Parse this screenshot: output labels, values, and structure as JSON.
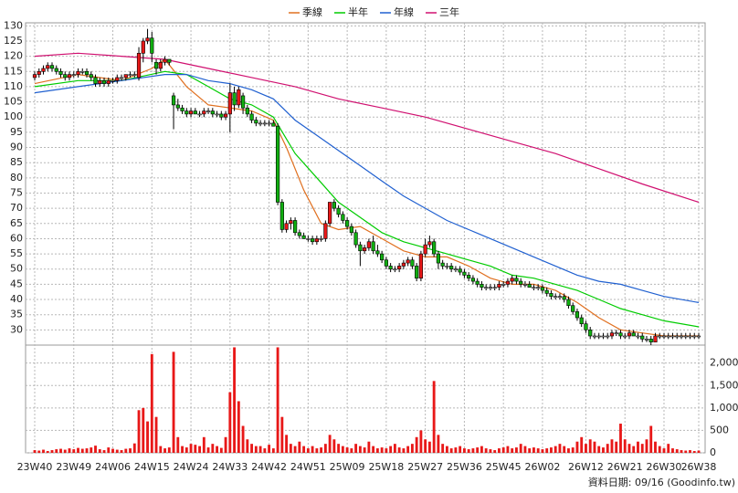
{
  "chart_data": {
    "type": "candlestick",
    "legend_position": "top",
    "categories": [
      "23W40",
      null,
      null,
      null,
      null,
      null,
      null,
      null,
      null,
      "23W49",
      null,
      null,
      null,
      null,
      null,
      null,
      null,
      null,
      "24W06",
      null,
      null,
      null,
      null,
      null,
      null,
      null,
      null,
      "24W15",
      null,
      null,
      null,
      null,
      null,
      null,
      null,
      null,
      "24W24",
      null,
      null,
      null,
      null,
      null,
      null,
      null,
      null,
      "24W33",
      null,
      null,
      null,
      null,
      null,
      null,
      null,
      null,
      "24W42",
      null,
      null,
      null,
      null,
      null,
      null,
      null,
      null,
      "24W51",
      null,
      null,
      null,
      null,
      null,
      null,
      null,
      null,
      "25W09",
      null,
      null,
      null,
      null,
      null,
      null,
      null,
      null,
      "25W18",
      null,
      null,
      null,
      null,
      null,
      null,
      null,
      null,
      "25W27",
      null,
      null,
      null,
      null,
      null,
      null,
      null,
      null,
      "25W36",
      null,
      null,
      null,
      null,
      null,
      null,
      null,
      null,
      "25W45",
      null,
      null,
      null,
      null,
      null,
      null,
      null,
      null,
      "26W02",
      null,
      null,
      null,
      null,
      null,
      null,
      null,
      null,
      null,
      "26W12",
      null,
      null,
      null,
      null,
      null,
      null,
      null,
      null,
      "26W21",
      null,
      null,
      null,
      null,
      null,
      null,
      null,
      null,
      "26W30",
      null,
      null,
      null,
      null,
      null,
      null,
      null,
      "26W38"
    ],
    "up_color": "#e81818",
    "down_color": "#10b010",
    "candles": [
      [
        113,
        115,
        112,
        114
      ],
      [
        114,
        116,
        113,
        115
      ],
      [
        115,
        117,
        114,
        116
      ],
      [
        116,
        118,
        115,
        117
      ],
      [
        117,
        118,
        115,
        116
      ],
      [
        116,
        117,
        114,
        115
      ],
      [
        115,
        116,
        113,
        114
      ],
      [
        114,
        115,
        112,
        113
      ],
      [
        113,
        115,
        112,
        114
      ],
      [
        114,
        115,
        113,
        114
      ],
      [
        114,
        116,
        113,
        115
      ],
      [
        115,
        116,
        114,
        115
      ],
      [
        115,
        116,
        113,
        114
      ],
      [
        114,
        115,
        112,
        113
      ],
      [
        113,
        114,
        110,
        111
      ],
      [
        111,
        113,
        110,
        112
      ],
      [
        112,
        113,
        110,
        111
      ],
      [
        111,
        113,
        110,
        112
      ],
      [
        112,
        113,
        111,
        112
      ],
      [
        112,
        114,
        111,
        113
      ],
      [
        113,
        114,
        112,
        113
      ],
      [
        113,
        114,
        112,
        114
      ],
      [
        114,
        115,
        113,
        114
      ],
      [
        114,
        115,
        113,
        114
      ],
      [
        113,
        123,
        112,
        121
      ],
      [
        121,
        126,
        118,
        125
      ],
      [
        125,
        129,
        124,
        126
      ],
      [
        126,
        128,
        118,
        121
      ],
      [
        118,
        119,
        114,
        116
      ],
      [
        116,
        119,
        115,
        118
      ],
      [
        118,
        120,
        117,
        119
      ],
      [
        119,
        119,
        117,
        118
      ],
      [
        107,
        108,
        96,
        104
      ],
      [
        104,
        106,
        102,
        103
      ],
      [
        103,
        104,
        101,
        102
      ],
      [
        102,
        103,
        100,
        101
      ],
      [
        101,
        103,
        100,
        102
      ],
      [
        102,
        103,
        101,
        101
      ],
      [
        101,
        102,
        100,
        101
      ],
      [
        101,
        103,
        100,
        102
      ],
      [
        102,
        103,
        101,
        102
      ],
      [
        102,
        103,
        100,
        101
      ],
      [
        101,
        102,
        100,
        101
      ],
      [
        101,
        102,
        99,
        100
      ],
      [
        100,
        102,
        99,
        101
      ],
      [
        101,
        111,
        95,
        108
      ],
      [
        108,
        110,
        102,
        104
      ],
      [
        104,
        110,
        103,
        109
      ],
      [
        107,
        108,
        101,
        103
      ],
      [
        103,
        104,
        100,
        101
      ],
      [
        101,
        102,
        98,
        99
      ],
      [
        99,
        100,
        97,
        98
      ],
      [
        98,
        99,
        97,
        98
      ],
      [
        98,
        99,
        97,
        98
      ],
      [
        98,
        99,
        97,
        98
      ],
      [
        98,
        99,
        97,
        97
      ],
      [
        97,
        98,
        71,
        72
      ],
      [
        72,
        73,
        62,
        63
      ],
      [
        63,
        66,
        62,
        65
      ],
      [
        65,
        67,
        63,
        66
      ],
      [
        66,
        67,
        61,
        62
      ],
      [
        62,
        63,
        60,
        61
      ],
      [
        61,
        62,
        60,
        60
      ],
      [
        60,
        61,
        59,
        60
      ],
      [
        60,
        61,
        58,
        59
      ],
      [
        59,
        61,
        58,
        60
      ],
      [
        60,
        61,
        59,
        60
      ],
      [
        60,
        66,
        59,
        65
      ],
      [
        65,
        72,
        64,
        72
      ],
      [
        72,
        73,
        69,
        70
      ],
      [
        70,
        71,
        67,
        68
      ],
      [
        68,
        69,
        65,
        66
      ],
      [
        66,
        67,
        63,
        64
      ],
      [
        64,
        65,
        61,
        62
      ],
      [
        62,
        63,
        57,
        58
      ],
      [
        58,
        59,
        51,
        56
      ],
      [
        56,
        58,
        55,
        57
      ],
      [
        57,
        60,
        56,
        59
      ],
      [
        59,
        61,
        55,
        56
      ],
      [
        56,
        58,
        54,
        55
      ],
      [
        55,
        56,
        52,
        53
      ],
      [
        53,
        54,
        50,
        51
      ],
      [
        51,
        52,
        49,
        50
      ],
      [
        50,
        51,
        49,
        50
      ],
      [
        50,
        52,
        49,
        51
      ],
      [
        51,
        53,
        50,
        52
      ],
      [
        52,
        54,
        51,
        53
      ],
      [
        53,
        54,
        50,
        51
      ],
      [
        51,
        52,
        46,
        47
      ],
      [
        47,
        56,
        46,
        55
      ],
      [
        55,
        60,
        54,
        58
      ],
      [
        58,
        61,
        57,
        59
      ],
      [
        59,
        60,
        54,
        55
      ],
      [
        55,
        56,
        50,
        52
      ],
      [
        52,
        53,
        50,
        51
      ],
      [
        51,
        52,
        50,
        51
      ],
      [
        51,
        52,
        49,
        50
      ],
      [
        50,
        51,
        49,
        50
      ],
      [
        50,
        51,
        48,
        49
      ],
      [
        49,
        50,
        47,
        48
      ],
      [
        48,
        49,
        46,
        47
      ],
      [
        47,
        48,
        45,
        46
      ],
      [
        46,
        47,
        44,
        45
      ],
      [
        45,
        46,
        43,
        44
      ],
      [
        44,
        45,
        43,
        44
      ],
      [
        44,
        45,
        43,
        44
      ],
      [
        44,
        45,
        43,
        44
      ],
      [
        44,
        46,
        43,
        45
      ],
      [
        45,
        46,
        44,
        45
      ],
      [
        45,
        47,
        44,
        46
      ],
      [
        46,
        48,
        45,
        47
      ],
      [
        47,
        48,
        45,
        46
      ],
      [
        46,
        47,
        44,
        45
      ],
      [
        45,
        46,
        44,
        45
      ],
      [
        45,
        46,
        44,
        44
      ],
      [
        44,
        45,
        43,
        44
      ],
      [
        44,
        45,
        43,
        44
      ],
      [
        44,
        45,
        42,
        43
      ],
      [
        43,
        44,
        41,
        42
      ],
      [
        42,
        43,
        40,
        41
      ],
      [
        41,
        42,
        40,
        41
      ],
      [
        41,
        42,
        40,
        41
      ],
      [
        41,
        42,
        39,
        40
      ],
      [
        40,
        41,
        37,
        38
      ],
      [
        38,
        39,
        35,
        36
      ],
      [
        36,
        37,
        33,
        34
      ],
      [
        34,
        35,
        31,
        32
      ],
      [
        32,
        33,
        29,
        30
      ],
      [
        30,
        31,
        27,
        28
      ],
      [
        28,
        29,
        27,
        28
      ],
      [
        28,
        29,
        27,
        28
      ],
      [
        28,
        29,
        27,
        28
      ],
      [
        28,
        29,
        27,
        28
      ],
      [
        28,
        30,
        27,
        29
      ],
      [
        29,
        30,
        28,
        29
      ],
      [
        29,
        30,
        27,
        28
      ],
      [
        28,
        29,
        27,
        28
      ],
      [
        28,
        30,
        27,
        29
      ],
      [
        29,
        30,
        28,
        28
      ],
      [
        28,
        29,
        27,
        28
      ],
      [
        28,
        29,
        26,
        27
      ],
      [
        27,
        28,
        26,
        27
      ],
      [
        27,
        28,
        25,
        26
      ],
      [
        26,
        29,
        26,
        28
      ],
      [
        28,
        29,
        27,
        28
      ],
      [
        28,
        29,
        27,
        28
      ],
      [
        28,
        29,
        27,
        28
      ],
      [
        28,
        29,
        27,
        28
      ],
      [
        28,
        29,
        27,
        28
      ],
      [
        28,
        29,
        27,
        28
      ],
      [
        28,
        29,
        27,
        28
      ],
      [
        28,
        29,
        27,
        28
      ],
      [
        28,
        29,
        27,
        28
      ],
      [
        28,
        29,
        27,
        28
      ]
    ],
    "ylim": [
      25,
      131
    ],
    "yticks": [
      30,
      35,
      40,
      45,
      50,
      55,
      60,
      65,
      70,
      75,
      80,
      85,
      90,
      95,
      100,
      105,
      110,
      115,
      120,
      125,
      130
    ],
    "series": [
      {
        "name": "季線",
        "color": "#e07020",
        "x": [
          0,
          10,
          20,
          27,
          30,
          35,
          40,
          45,
          50,
          55,
          58,
          62,
          66,
          70,
          75,
          80,
          85,
          90,
          95,
          100,
          105,
          110,
          115,
          120,
          125,
          130,
          135,
          140,
          145,
          153
        ],
        "values": [
          111,
          114,
          112,
          116,
          119,
          110,
          104,
          103,
          102,
          99,
          90,
          76,
          65,
          63,
          64,
          60,
          56,
          54,
          54,
          51,
          47,
          45,
          45,
          43,
          39,
          34,
          30,
          29,
          28,
          28
        ]
      },
      {
        "name": "半年",
        "color": "#00cc00",
        "x": [
          0,
          10,
          20,
          30,
          35,
          40,
          45,
          50,
          55,
          60,
          65,
          70,
          75,
          80,
          85,
          90,
          95,
          100,
          105,
          110,
          115,
          120,
          125,
          130,
          135,
          140,
          145,
          153
        ],
        "values": [
          110,
          112,
          112,
          115,
          114,
          110,
          106,
          104,
          100,
          88,
          80,
          72,
          67,
          62,
          59,
          57,
          55,
          53,
          51,
          48,
          47,
          45,
          43,
          40,
          37,
          35,
          33,
          31
        ]
      },
      {
        "name": "年線",
        "color": "#2060d0",
        "x": [
          0,
          10,
          20,
          30,
          35,
          40,
          45,
          50,
          55,
          60,
          65,
          70,
          75,
          80,
          85,
          90,
          95,
          100,
          105,
          110,
          115,
          120,
          125,
          130,
          135,
          140,
          145,
          153
        ],
        "values": [
          108,
          110,
          112,
          114,
          114,
          112,
          111,
          109,
          106,
          99,
          94,
          89,
          84,
          79,
          74,
          70,
          66,
          63,
          60,
          57,
          54,
          51,
          48,
          46,
          45,
          43,
          41,
          39
        ]
      },
      {
        "name": "三年",
        "color": "#d01070",
        "x": [
          0,
          10,
          20,
          30,
          40,
          50,
          60,
          70,
          80,
          90,
          100,
          110,
          120,
          130,
          140,
          153
        ],
        "values": [
          120,
          121,
          120,
          119,
          116,
          113,
          110,
          106,
          103,
          100,
          96,
          92,
          88,
          83,
          78,
          72
        ]
      }
    ],
    "volume_color": "#e81818",
    "volume": [
      60,
      50,
      70,
      40,
      60,
      80,
      90,
      70,
      100,
      80,
      110,
      90,
      100,
      120,
      160,
      80,
      60,
      120,
      90,
      70,
      60,
      90,
      100,
      210,
      950,
      1000,
      700,
      2200,
      800,
      150,
      100,
      120,
      2250,
      350,
      150,
      120,
      200,
      180,
      150,
      350,
      120,
      200,
      150,
      110,
      350,
      1350,
      2350,
      1150,
      600,
      300,
      200,
      150,
      150,
      100,
      180,
      100,
      2350,
      800,
      400,
      200,
      150,
      250,
      150,
      100,
      150,
      100,
      120,
      200,
      400,
      300,
      200,
      150,
      120,
      100,
      200,
      150,
      120,
      250,
      150,
      100,
      120,
      100,
      150,
      200,
      120,
      100,
      150,
      200,
      350,
      500,
      300,
      250,
      1600,
      400,
      200,
      150,
      100,
      120,
      150,
      100,
      80,
      100,
      120,
      150,
      100,
      80,
      60,
      100,
      120,
      150,
      100,
      120,
      200,
      150,
      100,
      120,
      100,
      80,
      100,
      120,
      150,
      200,
      150,
      100,
      120,
      250,
      350,
      200,
      300,
      250,
      150,
      120,
      200,
      300,
      250,
      650,
      300,
      200,
      150,
      250,
      200,
      300,
      600,
      250,
      150,
      100,
      200,
      100,
      80,
      60,
      50,
      60,
      40,
      50
    ],
    "y2lim": [
      0,
      2400
    ],
    "y2ticks": [
      0,
      500,
      {
        "value": 1000,
        "label": "1,000"
      },
      {
        "value": 1500,
        "label": "1,500"
      },
      {
        "value": 2000,
        "label": "2,000"
      }
    ],
    "grid": true,
    "source_note": "資料日期: 09/16  (Goodinfo.tw)"
  }
}
